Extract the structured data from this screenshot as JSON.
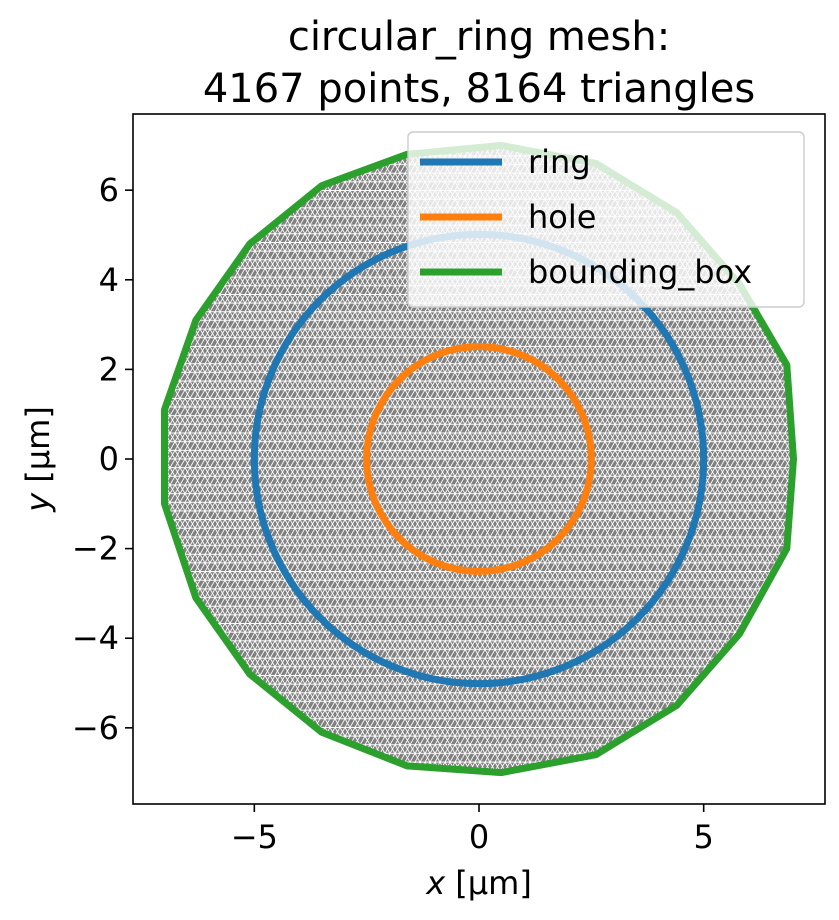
{
  "chart_data": {
    "type": "line",
    "title_line1": "circular_ring mesh:",
    "title_line2": "4167 points, 8164 triangles",
    "xlabel_var": "x",
    "xlabel_unit": " [µm]",
    "ylabel_var": "y",
    "ylabel_unit": " [µm]",
    "xlim": [
      -7.7,
      7.7
    ],
    "ylim": [
      -7.7,
      7.7
    ],
    "x_ticks": [
      {
        "value": -5,
        "label": "−5"
      },
      {
        "value": 0,
        "label": "0"
      },
      {
        "value": 5,
        "label": "5"
      }
    ],
    "y_ticks": [
      {
        "value": -6,
        "label": "−6"
      },
      {
        "value": -4,
        "label": "−4"
      },
      {
        "value": -2,
        "label": "−2"
      },
      {
        "value": 0,
        "label": "0"
      },
      {
        "value": 2,
        "label": "2"
      },
      {
        "value": 4,
        "label": "4"
      },
      {
        "value": 6,
        "label": "6"
      }
    ],
    "mesh": {
      "fill_color": "#808080",
      "line_color": "#ffffff"
    },
    "series": [
      {
        "name": "ring",
        "color": "#1f77b4",
        "shape": "circle",
        "radius": 5
      },
      {
        "name": "hole",
        "color": "#ff7f0e",
        "shape": "circle",
        "radius": 2.5
      },
      {
        "name": "bounding_box",
        "color": "#2ca02c",
        "shape": "polygon",
        "points": [
          [
            7.0,
            0.0
          ],
          [
            6.85,
            2.1
          ],
          [
            5.8,
            3.9
          ],
          [
            4.4,
            5.5
          ],
          [
            2.6,
            6.6
          ],
          [
            0.5,
            7.0
          ],
          [
            -1.6,
            6.8
          ],
          [
            -3.5,
            6.1
          ],
          [
            -5.1,
            4.8
          ],
          [
            -6.3,
            3.1
          ],
          [
            -7.0,
            1.1
          ],
          [
            -7.0,
            -1.0
          ],
          [
            -6.3,
            -3.1
          ],
          [
            -5.1,
            -4.8
          ],
          [
            -3.5,
            -6.1
          ],
          [
            -1.6,
            -6.85
          ],
          [
            0.5,
            -7.0
          ],
          [
            2.6,
            -6.6
          ],
          [
            4.4,
            -5.5
          ],
          [
            5.8,
            -3.9
          ],
          [
            6.85,
            -2.0
          ]
        ]
      }
    ],
    "legend_position": "upper right",
    "grid": false
  }
}
